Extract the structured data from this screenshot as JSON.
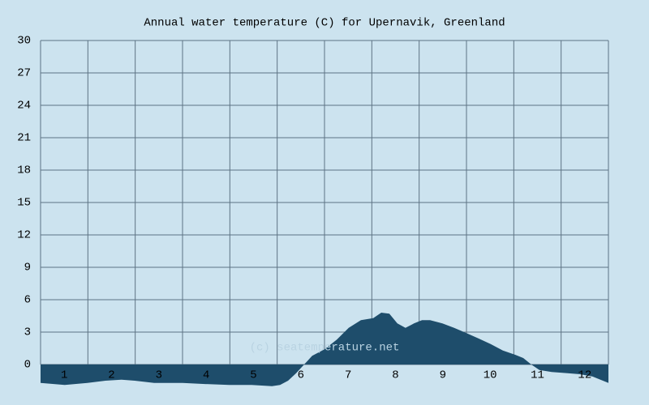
{
  "chart_data": {
    "type": "area",
    "title": "Annual water temperature (C) for Upernavik, Greenland",
    "watermark": "(c) seatemperature.net",
    "x": [
      0,
      0.51,
      0.99,
      1.37,
      1.71,
      1.99,
      2.4,
      3.0,
      3.43,
      3.99,
      4.46,
      4.89,
      5.06,
      5.23,
      5.4,
      5.57,
      5.74,
      6.0,
      6.26,
      6.51,
      6.77,
      7.03,
      7.2,
      7.37,
      7.54,
      7.71,
      7.89,
      8.06,
      8.23,
      8.49,
      8.74,
      9.0,
      9.26,
      9.51,
      9.77,
      10.03,
      10.2,
      10.37,
      10.54,
      10.8,
      11.14,
      11.4,
      11.66,
      12
    ],
    "series": [
      {
        "color": "#1e4d6b",
        "values": [
          -1.7,
          -1.9,
          -1.7,
          -1.5,
          -1.4,
          -1.5,
          -1.7,
          -1.7,
          -1.8,
          -1.9,
          -1.9,
          -2.0,
          -1.9,
          -1.5,
          -0.8,
          0,
          0.8,
          1.4,
          2.3,
          3.4,
          4.1,
          4.3,
          4.8,
          4.7,
          3.8,
          3.4,
          3.8,
          4.1,
          4.1,
          3.8,
          3.4,
          2.9,
          2.4,
          1.9,
          1.3,
          0.9,
          0.6,
          0,
          -0.5,
          -0.7,
          -0.8,
          -0.9,
          -1.1,
          -1.7
        ]
      }
    ],
    "xlim": [
      0,
      12
    ],
    "xticks": [
      {
        "value": 0.5,
        "label": "1"
      },
      {
        "value": 1.5,
        "label": "2"
      },
      {
        "value": 2.5,
        "label": "3"
      },
      {
        "value": 3.5,
        "label": "4"
      },
      {
        "value": 4.5,
        "label": "5"
      },
      {
        "value": 5.5,
        "label": "6"
      },
      {
        "value": 6.5,
        "label": "7"
      },
      {
        "value": 7.5,
        "label": "8"
      },
      {
        "value": 8.5,
        "label": "9"
      },
      {
        "value": 9.5,
        "label": "10"
      },
      {
        "value": 10.5,
        "label": "11"
      },
      {
        "value": 11.5,
        "label": "12"
      }
    ],
    "xgrid": [
      0,
      1,
      2,
      3,
      4,
      5,
      6,
      7,
      8,
      9,
      10,
      11,
      12
    ],
    "ylim": [
      -2,
      30
    ],
    "yticks": [
      0,
      3,
      6,
      9,
      12,
      15,
      18,
      21,
      24,
      27,
      30
    ],
    "grid": true
  }
}
